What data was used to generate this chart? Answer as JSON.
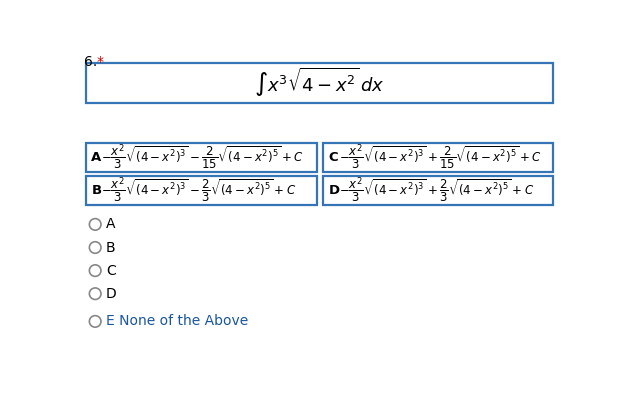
{
  "title_number": "6.",
  "title_asterisk": "*",
  "question": "$\\int x^3 \\sqrt{4 - x^2}\\, dx$",
  "option_A": "$-\\dfrac{x^2}{3}\\sqrt{(4-x^2)^3} - \\dfrac{2}{15}\\sqrt{(4-x^2)^5} + C$",
  "option_B": "$-\\dfrac{x^2}{3}\\sqrt{(4-x^2)^3} - \\dfrac{2}{3}\\sqrt{(4-x^2)^5} + C$",
  "option_C": "$-\\dfrac{x^2}{3}\\sqrt{(4-x^2)^3} + \\dfrac{2}{15}\\sqrt{(4-x^2)^5} + C$",
  "option_D": "$-\\dfrac{x^2}{3}\\sqrt{(4-x^2)^3} + \\dfrac{2}{3}\\sqrt{(4-x^2)^5} + C$",
  "box_color": "#3575b5",
  "bg_color": "#ffffff",
  "text_color": "#000000",
  "asterisk_color": "#cc0000",
  "radio_color": "#888888",
  "enone_color": "#1a56a0",
  "question_fontsize": 13,
  "option_label_fontsize": 9.5,
  "option_text_fontsize": 8.5,
  "choice_fontsize": 10,
  "title_fontsize": 10
}
